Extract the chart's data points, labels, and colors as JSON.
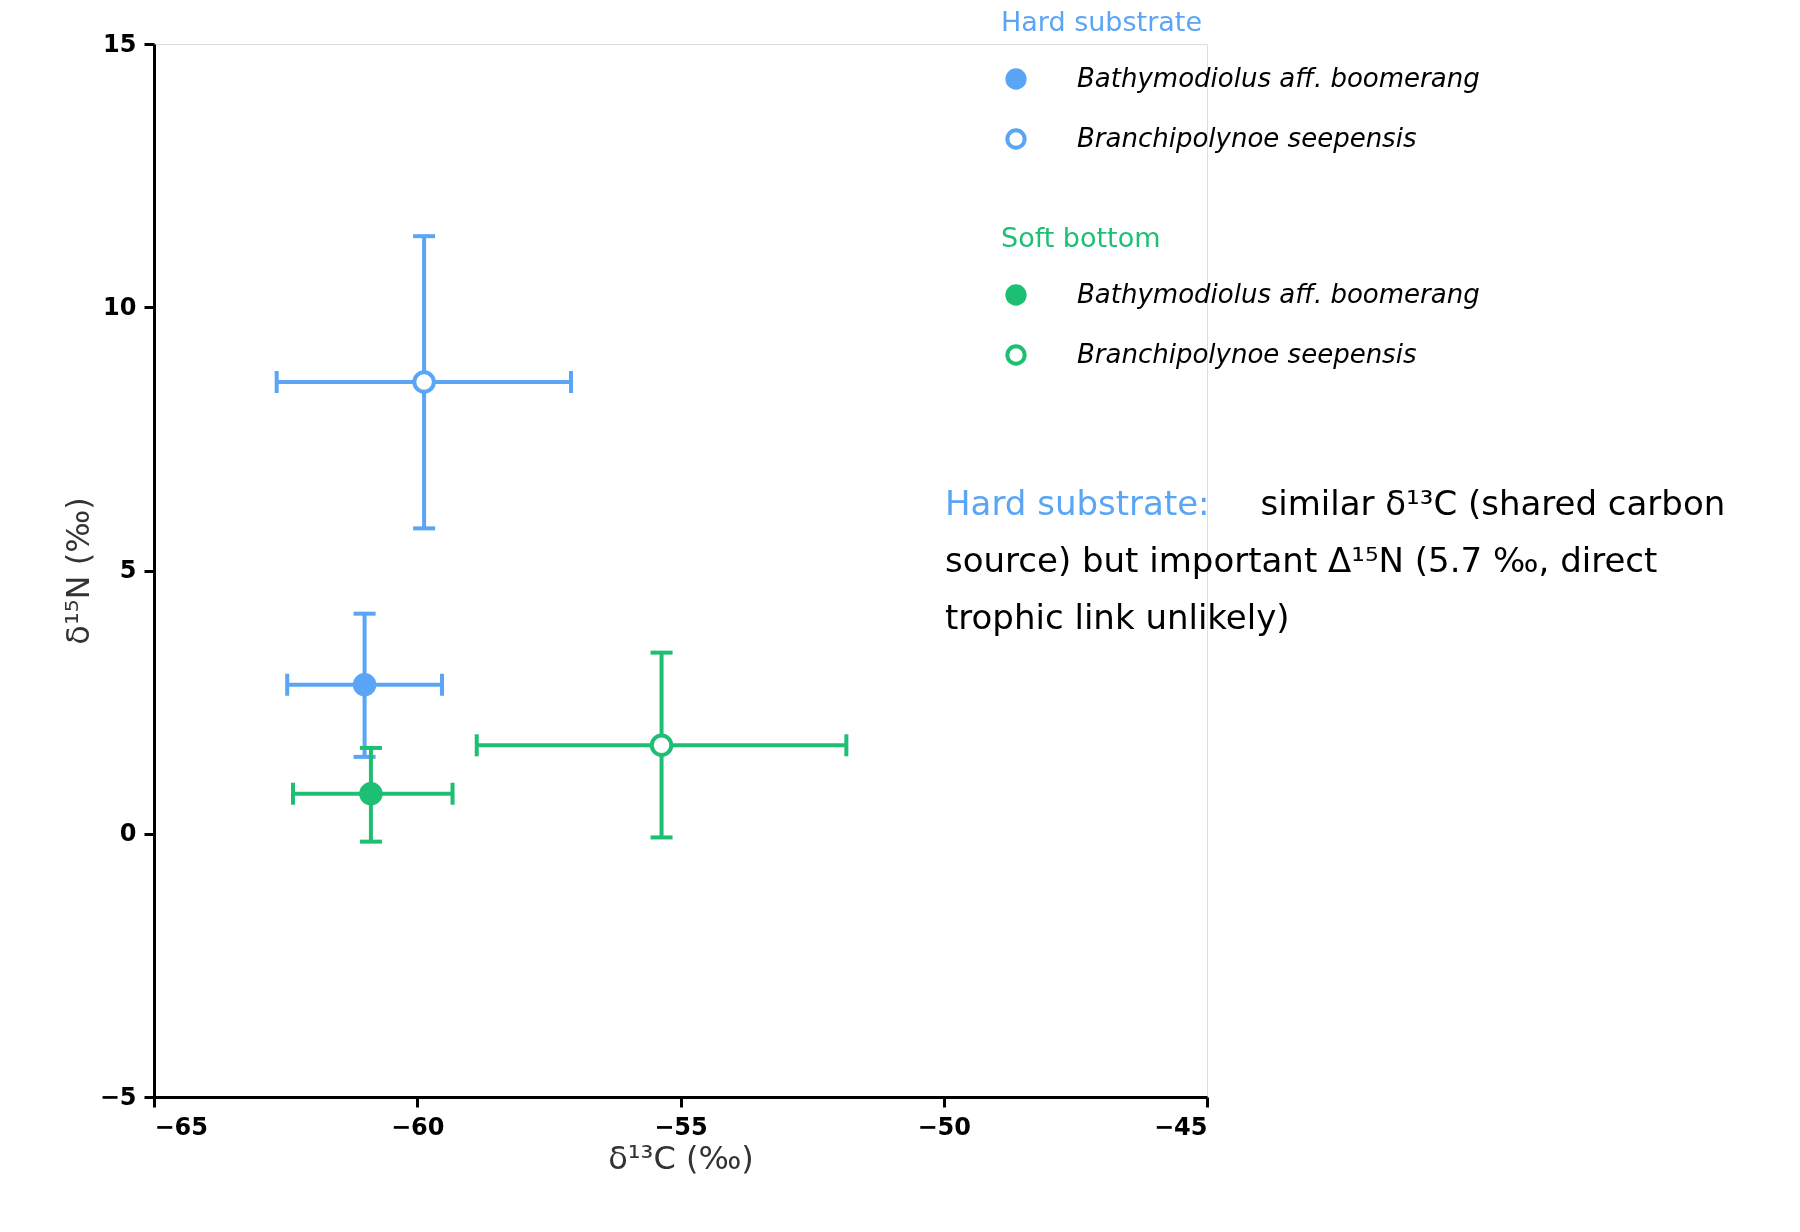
{
  "chart_data": {
    "type": "scatter",
    "xlabel": "δ¹³C (‰)",
    "ylabel": "δ¹⁵N (‰)",
    "xlim": [
      -65,
      -45
    ],
    "xticks": [
      -65,
      -60,
      -55,
      -50,
      -45
    ],
    "ylim": [
      -5,
      15
    ],
    "yticks": [
      -5,
      0,
      5,
      10,
      15
    ],
    "grid": false,
    "legend": "top right",
    "marker": "circle",
    "series": [
      {
        "name": "Bathymodiolus aff. boomerang",
        "color": "#5aa5f5",
        "x": [
          -61.0
        ],
        "values": [
          2.83
        ],
        "errors": [
          [
            1.46,
            4.18
          ]
        ],
        "xerrors": [
          [
            -62.47,
            -59.53
          ]
        ]
      },
      {
        "name": "Branchipolynoe seepensis",
        "color": "#5aa5f5",
        "x": [
          -59.87
        ],
        "values": [
          8.58
        ],
        "errors": [
          [
            5.8,
            11.35
          ]
        ],
        "xerrors": [
          [
            -62.67,
            -57.08
          ]
        ]
      },
      {
        "name": "Bathymodiolus aff. boomerang",
        "color": "#1dbf73",
        "x": [
          -60.88
        ],
        "values": [
          0.76
        ],
        "errors": [
          [
            -0.15,
            1.63
          ]
        ],
        "xerrors": [
          [
            -62.36,
            -59.33
          ]
        ]
      },
      {
        "name": "Branchipolynoe seepensis",
        "color": "#1dbf73",
        "x": [
          -55.36
        ],
        "values": [
          1.68
        ],
        "errors": [
          [
            -0.07,
            3.44
          ]
        ],
        "xerrors": [
          [
            -58.87,
            -51.85
          ]
        ]
      }
    ],
    "annotations": [
      "Hard substrate",
      "Soft bottom",
      "Hard substrate:",
      "similar δ¹³C (shared carbon source) but important Δ¹⁵N (5.7 ‰, direct trophic link unlikely)"
    ]
  }
}
